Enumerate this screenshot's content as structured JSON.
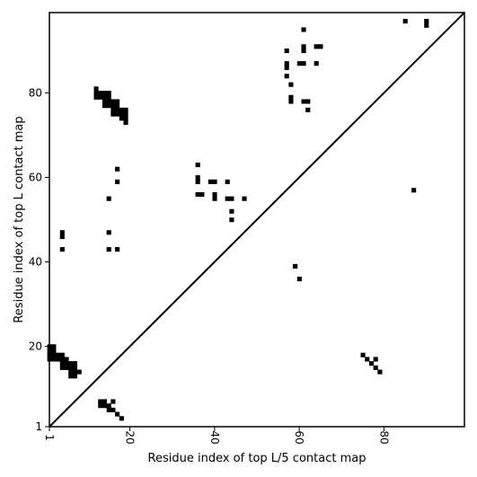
{
  "chart_data": {
    "type": "scatter",
    "xlabel": "Residue index of top L/5 contact map",
    "ylabel": "Residue index of top L contact map",
    "xlim": [
      1,
      99
    ],
    "ylim": [
      1,
      99
    ],
    "xticks": [
      1,
      20,
      40,
      60,
      80
    ],
    "yticks": [
      1,
      20,
      40,
      60,
      80
    ],
    "diagonal": true,
    "marker": "square",
    "marker_color": "#000000",
    "upper_triangle_points": [
      [
        12,
        80
      ],
      [
        12,
        81
      ],
      [
        12,
        79
      ],
      [
        13,
        80
      ],
      [
        13,
        79
      ],
      [
        14,
        80
      ],
      [
        14,
        79
      ],
      [
        14,
        78
      ],
      [
        14,
        77
      ],
      [
        15,
        80
      ],
      [
        15,
        79
      ],
      [
        15,
        78
      ],
      [
        15,
        77
      ],
      [
        16,
        78
      ],
      [
        16,
        77
      ],
      [
        16,
        76
      ],
      [
        16,
        75
      ],
      [
        17,
        78
      ],
      [
        17,
        77
      ],
      [
        17,
        76
      ],
      [
        17,
        75
      ],
      [
        18,
        76
      ],
      [
        18,
        75
      ],
      [
        18,
        74
      ],
      [
        19,
        76
      ],
      [
        19,
        75
      ],
      [
        19,
        74
      ],
      [
        19,
        73
      ],
      [
        17,
        62
      ],
      [
        17,
        59
      ],
      [
        15,
        55
      ],
      [
        15,
        47
      ],
      [
        15,
        43
      ],
      [
        17,
        43
      ],
      [
        4,
        47
      ],
      [
        4,
        46
      ],
      [
        4,
        43
      ],
      [
        36,
        63
      ],
      [
        36,
        60
      ],
      [
        36,
        59
      ],
      [
        36,
        56
      ],
      [
        37,
        56
      ],
      [
        39,
        59
      ],
      [
        40,
        59
      ],
      [
        40,
        56
      ],
      [
        40,
        55
      ],
      [
        43,
        59
      ],
      [
        43,
        55
      ],
      [
        44,
        55
      ],
      [
        44,
        52
      ],
      [
        44,
        50
      ],
      [
        47,
        55
      ],
      [
        57,
        90
      ],
      [
        57,
        87
      ],
      [
        57,
        86
      ],
      [
        57,
        84
      ],
      [
        58,
        82
      ],
      [
        58,
        79
      ],
      [
        58,
        78
      ],
      [
        60,
        87
      ],
      [
        61,
        87
      ],
      [
        61,
        91
      ],
      [
        61,
        90
      ],
      [
        61,
        95
      ],
      [
        61,
        78
      ],
      [
        62,
        78
      ],
      [
        62,
        76
      ],
      [
        64,
        91
      ],
      [
        65,
        91
      ],
      [
        64,
        87
      ],
      [
        59,
        39
      ],
      [
        60,
        36
      ],
      [
        85,
        97
      ],
      [
        90,
        97
      ],
      [
        90,
        96
      ],
      [
        87,
        57
      ]
    ],
    "lower_triangle_points": [
      [
        1,
        20
      ],
      [
        1,
        19
      ],
      [
        1,
        18
      ],
      [
        1,
        17
      ],
      [
        2,
        20
      ],
      [
        2,
        19
      ],
      [
        2,
        18
      ],
      [
        2,
        17
      ],
      [
        3,
        18
      ],
      [
        3,
        17
      ],
      [
        4,
        18
      ],
      [
        4,
        17
      ],
      [
        4,
        16
      ],
      [
        4,
        15
      ],
      [
        5,
        17
      ],
      [
        5,
        16
      ],
      [
        5,
        15
      ],
      [
        6,
        16
      ],
      [
        6,
        15
      ],
      [
        6,
        14
      ],
      [
        6,
        13
      ],
      [
        7,
        16
      ],
      [
        7,
        15
      ],
      [
        7,
        14
      ],
      [
        7,
        13
      ],
      [
        8,
        14
      ],
      [
        13,
        7
      ],
      [
        13,
        6
      ],
      [
        14,
        7
      ],
      [
        14,
        6
      ],
      [
        15,
        6
      ],
      [
        15,
        5
      ],
      [
        16,
        7
      ],
      [
        16,
        5
      ],
      [
        17,
        4
      ],
      [
        18,
        3
      ],
      [
        75,
        18
      ],
      [
        76,
        17
      ],
      [
        77,
        16
      ],
      [
        78,
        17
      ],
      [
        78,
        15
      ],
      [
        79,
        14
      ]
    ]
  }
}
